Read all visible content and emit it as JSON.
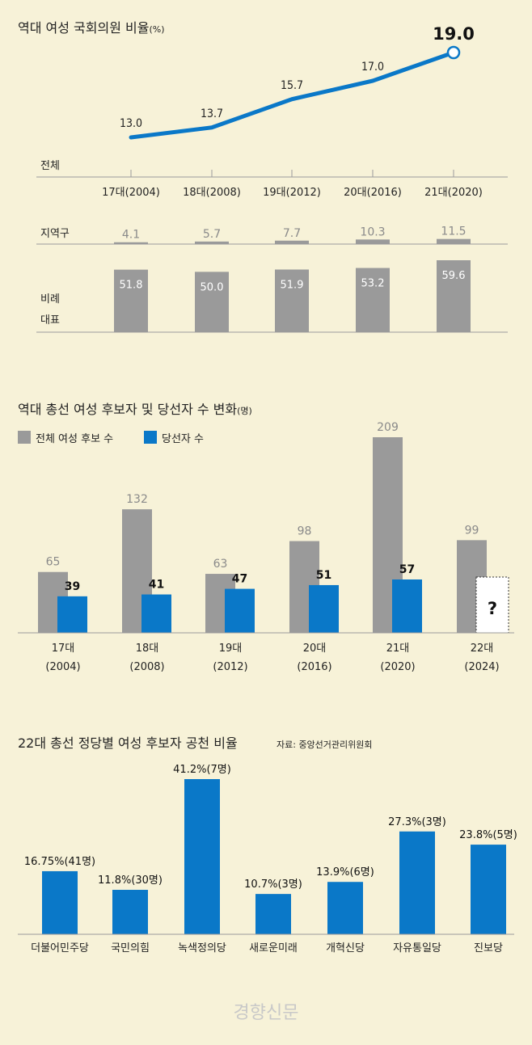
{
  "colors": {
    "background": "#f7f2d8",
    "gray": "#9a9a9a",
    "blue": "#0a78c8",
    "axis": "#9b9b9b"
  },
  "chart_data": [
    {
      "type": "line",
      "title": "역대 여성 국회의원 비율",
      "unit": "(%)",
      "row_label": "전체",
      "categories": [
        "17대(2004)",
        "18대(2008)",
        "19대(2012)",
        "20대(2016)",
        "21대(2020)"
      ],
      "values": [
        13.0,
        13.7,
        15.7,
        17.0,
        19.0
      ],
      "value_labels": [
        "13.0",
        "13.7",
        "15.7",
        "17.0",
        "19.0"
      ]
    },
    {
      "type": "bar",
      "row_label": "지역구",
      "values": [
        4.1,
        5.7,
        7.7,
        10.3,
        11.5
      ],
      "value_labels": [
        "4.1",
        "5.7",
        "7.7",
        "10.3",
        "11.5"
      ]
    },
    {
      "type": "bar",
      "row_label": [
        "비례",
        "대표"
      ],
      "values": [
        51.8,
        50.0,
        51.9,
        53.2,
        59.6
      ],
      "value_labels": [
        "51.8",
        "50.0",
        "51.9",
        "53.2",
        "59.6"
      ]
    },
    {
      "type": "bar",
      "title": "역대 총선 여성 후보자 및 당선자 수 변화",
      "unit": "(명)",
      "categories": [
        "17대\n(2004)",
        "18대\n(2008)",
        "19대\n(2012)",
        "20대\n(2016)",
        "21대\n(2020)",
        "22대\n(2024)"
      ],
      "category_lines": [
        [
          "17대",
          "(2004)"
        ],
        [
          "18대",
          "(2008)"
        ],
        [
          "19대",
          "(2012)"
        ],
        [
          "20대",
          "(2016)"
        ],
        [
          "21대",
          "(2020)"
        ],
        [
          "22대",
          "(2024)"
        ]
      ],
      "series": [
        {
          "name": "전체 여성 후보 수",
          "values": [
            65,
            132,
            63,
            98,
            209,
            99
          ]
        },
        {
          "name": "당선자 수",
          "values": [
            39,
            41,
            47,
            51,
            57,
            null
          ]
        }
      ],
      "unknown_marker": "?"
    },
    {
      "type": "bar",
      "title": "22대 총선 정당별 여성 후보자 공천 비율",
      "source": "자료: 중앙선거관리위원회",
      "categories": [
        "더불어민주당",
        "국민의힘",
        "녹색정의당",
        "새로운미래",
        "개혁신당",
        "자유통일당",
        "진보당"
      ],
      "values": [
        16.75,
        11.8,
        41.2,
        10.7,
        13.9,
        27.3,
        23.8
      ],
      "value_labels": [
        "16.75%(41명)",
        "11.8%(30명)",
        "41.2%(7명)",
        "10.7%(3명)",
        "13.9%(6명)",
        "27.3%(3명)",
        "23.8%(5명)"
      ]
    }
  ],
  "watermark": "경향신문"
}
